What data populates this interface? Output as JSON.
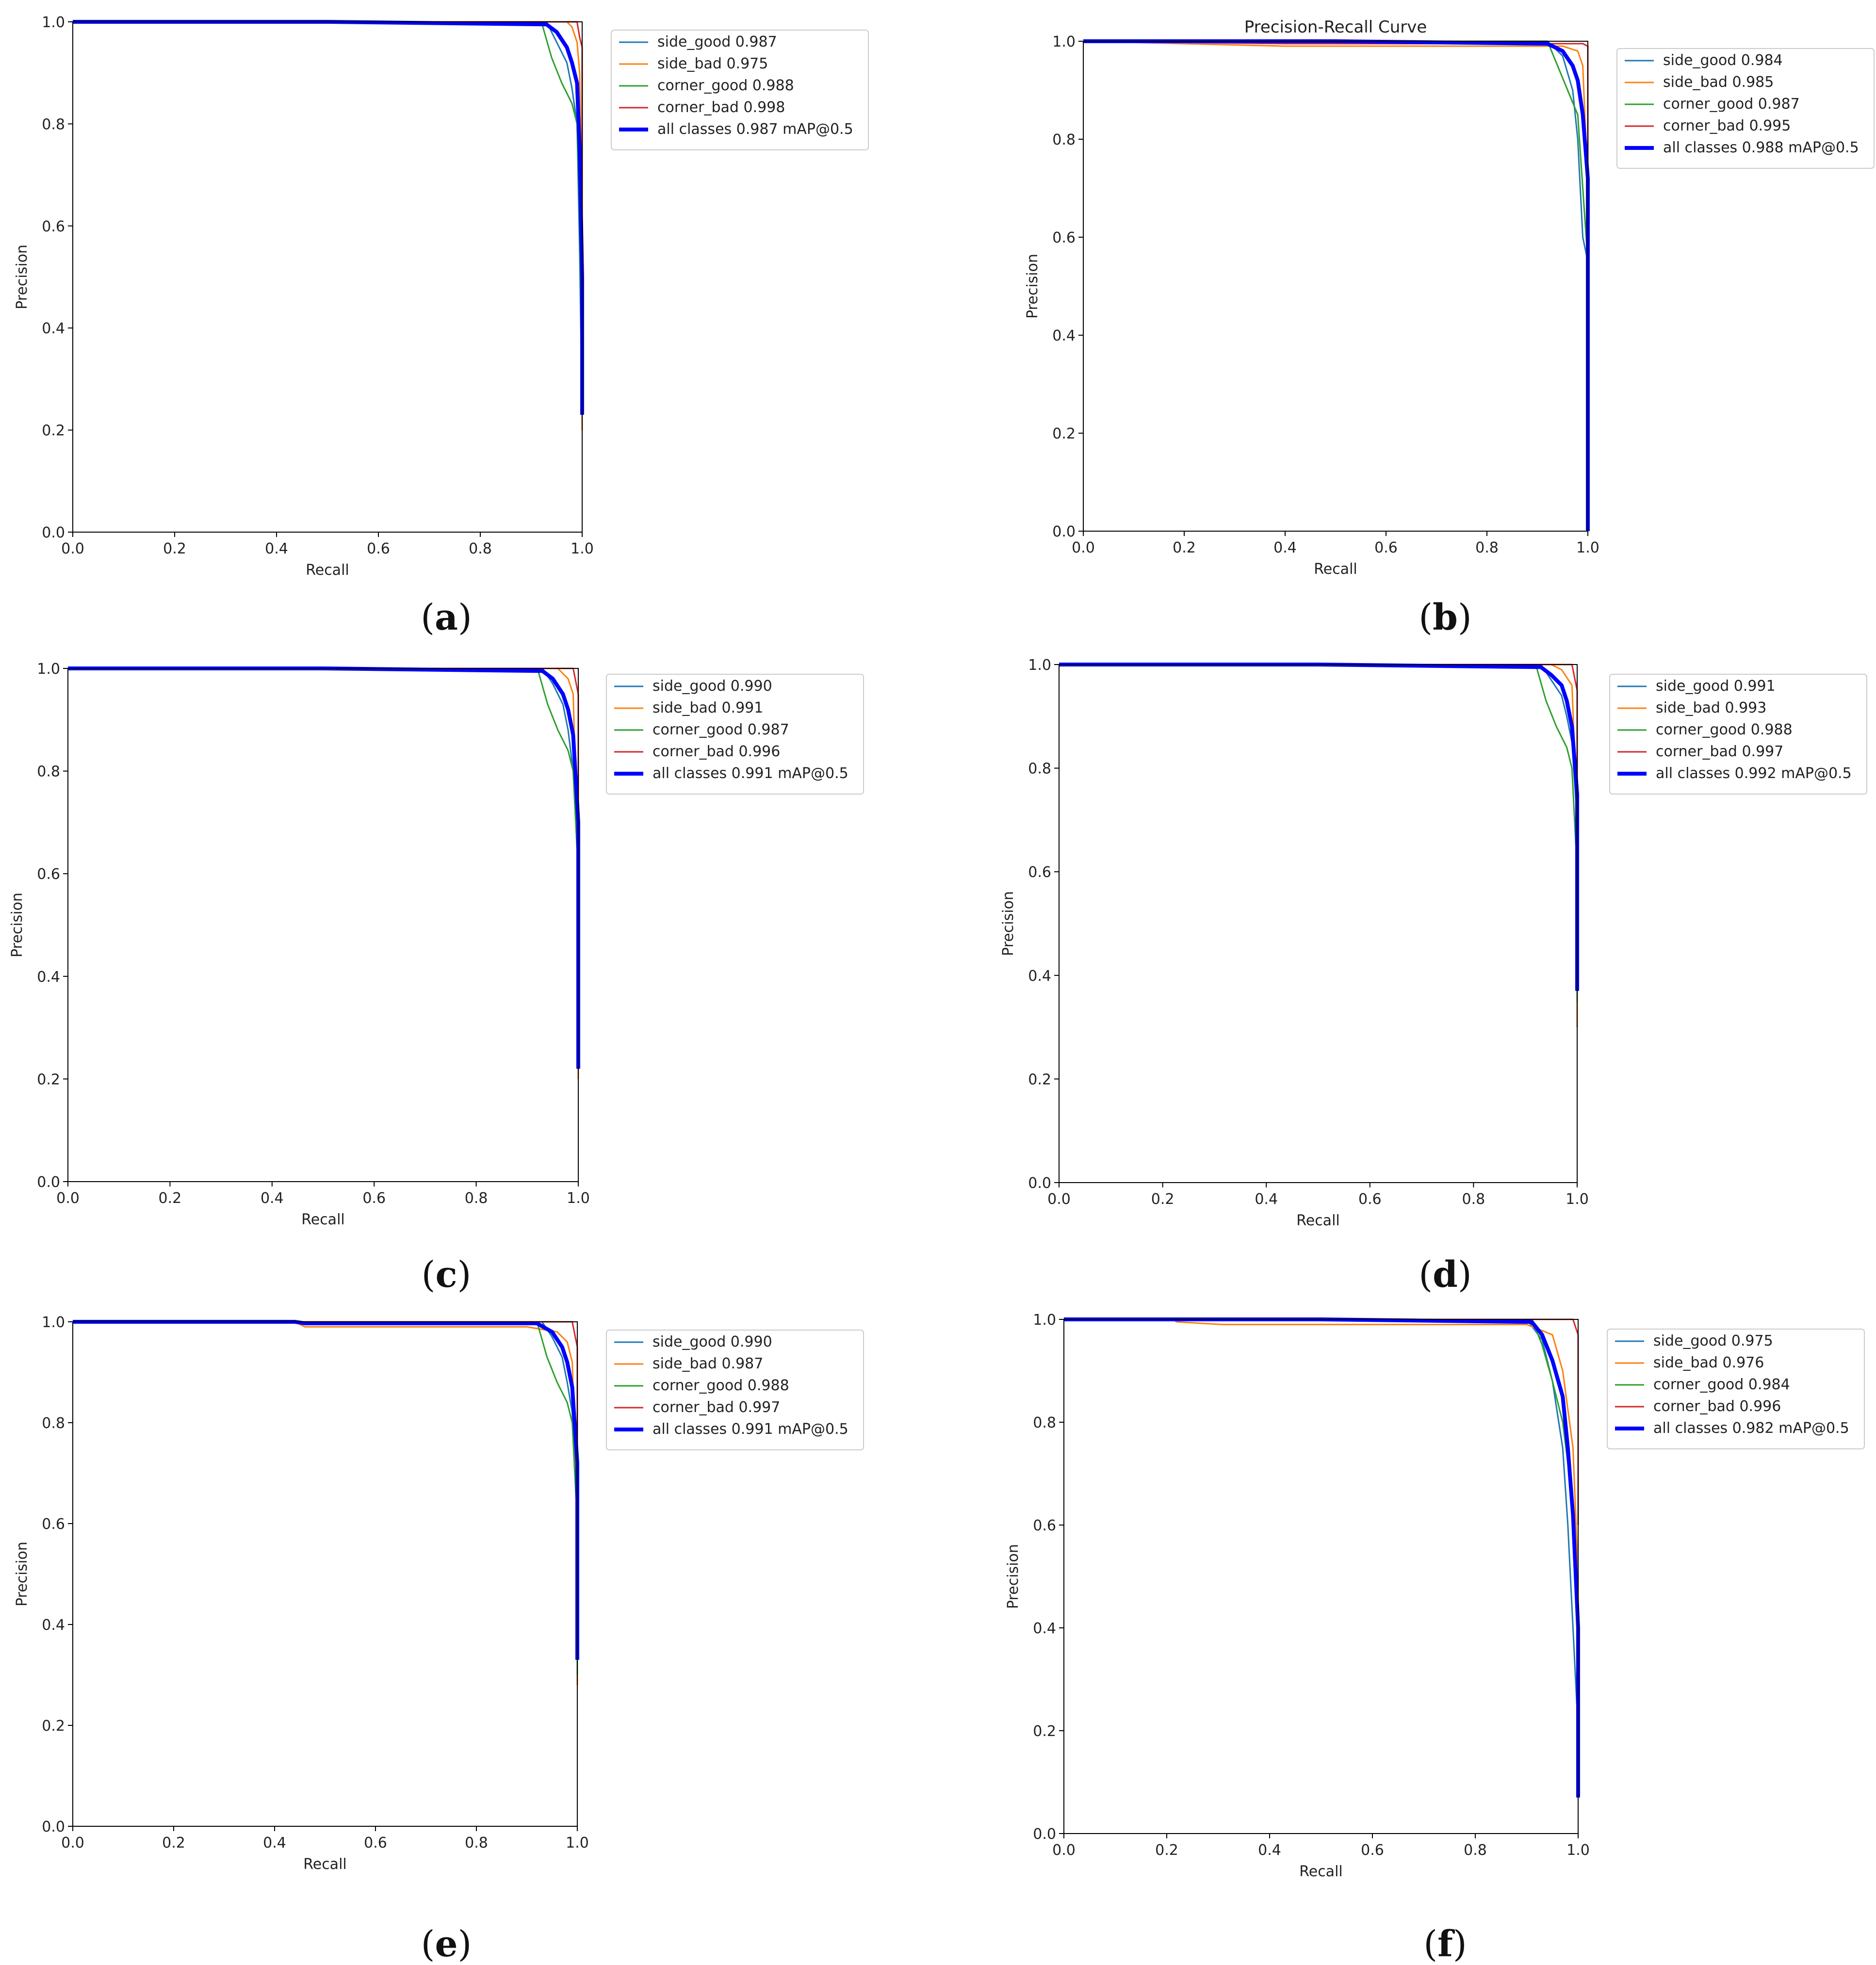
{
  "colors": {
    "side_good": "#1f77b4",
    "side_bad": "#ff7f0e",
    "corner_good": "#2ca02c",
    "corner_bad": "#d62728",
    "all_classes": "#0000ff",
    "axes": "#000000",
    "legend_border": "#cccccc"
  },
  "chart_data": [
    {
      "type": "line",
      "panel": "a",
      "caption": "a",
      "title": "",
      "xlabel": "Recall",
      "ylabel": "Precision",
      "xlim": [
        0,
        1
      ],
      "ylim": [
        0,
        1
      ],
      "xticks": [
        "0.0",
        "0.2",
        "0.4",
        "0.6",
        "0.8",
        "1.0"
      ],
      "yticks": [
        "0.0",
        "0.2",
        "0.4",
        "0.6",
        "0.8",
        "1.0"
      ],
      "grid": false,
      "legend_position": "outside-right-top",
      "series": [
        {
          "name": "side_good 0.987",
          "key": "side_good",
          "x": [
            0,
            0.5,
            0.93,
            0.95,
            0.97,
            0.98,
            0.99,
            0.995,
            1.0
          ],
          "y": [
            1.0,
            1.0,
            1.0,
            0.96,
            0.92,
            0.87,
            0.8,
            0.55,
            0.22
          ]
        },
        {
          "name": "side_bad 0.975",
          "key": "side_bad",
          "x": [
            0,
            0.5,
            0.97,
            0.98,
            0.99,
            0.995,
            1.0,
            1.0
          ],
          "y": [
            1.0,
            1.0,
            1.0,
            0.99,
            0.96,
            0.9,
            0.6,
            0.2
          ]
        },
        {
          "name": "corner_good 0.988",
          "key": "corner_good",
          "x": [
            0,
            0.5,
            0.92,
            0.94,
            0.96,
            0.98,
            0.99,
            0.995,
            1.0
          ],
          "y": [
            1.0,
            1.0,
            1.0,
            0.93,
            0.88,
            0.84,
            0.8,
            0.6,
            0.3
          ]
        },
        {
          "name": "corner_bad 0.998",
          "key": "corner_bad",
          "x": [
            0,
            0.5,
            0.99,
            0.995,
            1.0,
            1.0
          ],
          "y": [
            1.0,
            1.0,
            1.0,
            0.97,
            0.95,
            0.55
          ]
        },
        {
          "name": "all classes 0.987 mAP@0.5",
          "key": "all_classes",
          "x": [
            0,
            0.5,
            0.93,
            0.95,
            0.97,
            0.98,
            0.99,
            0.995,
            1.0,
            1.0
          ],
          "y": [
            1.0,
            1.0,
            0.995,
            0.98,
            0.95,
            0.92,
            0.88,
            0.75,
            0.5,
            0.23
          ]
        }
      ]
    },
    {
      "type": "line",
      "panel": "b",
      "caption": "b",
      "title": "Precision-Recall Curve",
      "xlabel": "Recall",
      "ylabel": "Precision",
      "xlim": [
        0,
        1
      ],
      "ylim": [
        0,
        1
      ],
      "xticks": [
        "0.0",
        "0.2",
        "0.4",
        "0.6",
        "0.8",
        "1.0"
      ],
      "yticks": [
        "0.0",
        "0.2",
        "0.4",
        "0.6",
        "0.8",
        "1.0"
      ],
      "grid": false,
      "legend_position": "outside-right-top",
      "series": [
        {
          "name": "side_good 0.984",
          "key": "side_good",
          "x": [
            0,
            0.5,
            0.92,
            0.95,
            0.97,
            0.98,
            0.99,
            1.0,
            1.0
          ],
          "y": [
            1.0,
            1.0,
            1.0,
            0.97,
            0.9,
            0.8,
            0.6,
            0.55,
            0.0
          ]
        },
        {
          "name": "side_bad 0.985",
          "key": "side_bad",
          "x": [
            0,
            0.4,
            0.5,
            0.8,
            0.95,
            0.98,
            0.99,
            1.0,
            1.0
          ],
          "y": [
            1.0,
            0.99,
            0.99,
            0.99,
            0.99,
            0.98,
            0.95,
            0.7,
            0.0
          ]
        },
        {
          "name": "corner_good 0.987",
          "key": "corner_good",
          "x": [
            0,
            0.5,
            0.92,
            0.94,
            0.96,
            0.98,
            0.99,
            1.0,
            1.0
          ],
          "y": [
            1.0,
            1.0,
            1.0,
            0.95,
            0.9,
            0.85,
            0.7,
            0.55,
            0.0
          ]
        },
        {
          "name": "corner_bad 0.995",
          "key": "corner_bad",
          "x": [
            0,
            0.4,
            0.5,
            0.99,
            1.0,
            1.0,
            1.0
          ],
          "y": [
            1.0,
            0.995,
            0.995,
            0.995,
            0.99,
            0.7,
            0.0
          ]
        },
        {
          "name": "all classes 0.988 mAP@0.5",
          "key": "all_classes",
          "x": [
            0,
            0.5,
            0.92,
            0.95,
            0.97,
            0.98,
            0.99,
            1.0,
            1.0
          ],
          "y": [
            1.0,
            1.0,
            0.995,
            0.98,
            0.95,
            0.92,
            0.85,
            0.72,
            0.0
          ]
        }
      ]
    },
    {
      "type": "line",
      "panel": "c",
      "caption": "c",
      "title": "",
      "xlabel": "Recall",
      "ylabel": "Precision",
      "xlim": [
        0,
        1
      ],
      "ylim": [
        0,
        1
      ],
      "xticks": [
        "0.0",
        "0.2",
        "0.4",
        "0.6",
        "0.8",
        "1.0"
      ],
      "yticks": [
        "0.0",
        "0.2",
        "0.4",
        "0.6",
        "0.8",
        "1.0"
      ],
      "grid": false,
      "legend_position": "outside-right-top",
      "series": [
        {
          "name": "side_good 0.990",
          "key": "side_good",
          "x": [
            0,
            0.5,
            0.93,
            0.95,
            0.97,
            0.98,
            0.99,
            1.0,
            1.0
          ],
          "y": [
            1.0,
            1.0,
            1.0,
            0.97,
            0.93,
            0.88,
            0.8,
            0.6,
            0.22
          ]
        },
        {
          "name": "side_bad 0.991",
          "key": "side_bad",
          "x": [
            0,
            0.5,
            0.96,
            0.98,
            0.99,
            1.0,
            1.0
          ],
          "y": [
            1.0,
            1.0,
            1.0,
            0.98,
            0.95,
            0.6,
            0.2
          ]
        },
        {
          "name": "corner_good 0.987",
          "key": "corner_good",
          "x": [
            0,
            0.5,
            0.92,
            0.94,
            0.96,
            0.98,
            0.99,
            1.0,
            1.0
          ],
          "y": [
            1.0,
            1.0,
            1.0,
            0.93,
            0.88,
            0.84,
            0.8,
            0.6,
            0.3
          ]
        },
        {
          "name": "corner_bad 0.996",
          "key": "corner_bad",
          "x": [
            0,
            0.5,
            0.99,
            1.0,
            1.0
          ],
          "y": [
            1.0,
            1.0,
            1.0,
            0.95,
            0.55
          ]
        },
        {
          "name": "all classes 0.991 mAP@0.5",
          "key": "all_classes",
          "x": [
            0,
            0.5,
            0.93,
            0.95,
            0.97,
            0.98,
            0.99,
            1.0,
            1.0
          ],
          "y": [
            1.0,
            1.0,
            0.995,
            0.98,
            0.95,
            0.92,
            0.87,
            0.7,
            0.22
          ]
        }
      ]
    },
    {
      "type": "line",
      "panel": "d",
      "caption": "d",
      "title": "",
      "xlabel": "Recall",
      "ylabel": "Precision",
      "xlim": [
        0,
        1
      ],
      "ylim": [
        0,
        1
      ],
      "xticks": [
        "0.0",
        "0.2",
        "0.4",
        "0.6",
        "0.8",
        "1.0"
      ],
      "yticks": [
        "0.0",
        "0.2",
        "0.4",
        "0.6",
        "0.8",
        "1.0"
      ],
      "grid": false,
      "legend_position": "outside-right-top",
      "series": [
        {
          "name": "side_good 0.991",
          "key": "side_good",
          "x": [
            0,
            0.5,
            0.93,
            0.95,
            0.97,
            0.98,
            0.99,
            1.0,
            1.0
          ],
          "y": [
            1.0,
            1.0,
            1.0,
            0.97,
            0.94,
            0.9,
            0.85,
            0.7,
            0.35
          ]
        },
        {
          "name": "side_bad 0.993",
          "key": "side_bad",
          "x": [
            0,
            0.5,
            0.95,
            0.97,
            0.99,
            1.0,
            1.0
          ],
          "y": [
            1.0,
            1.0,
            1.0,
            0.99,
            0.96,
            0.7,
            0.3
          ]
        },
        {
          "name": "corner_good 0.988",
          "key": "corner_good",
          "x": [
            0,
            0.5,
            0.92,
            0.94,
            0.96,
            0.98,
            0.99,
            1.0,
            1.0
          ],
          "y": [
            1.0,
            1.0,
            1.0,
            0.93,
            0.88,
            0.84,
            0.8,
            0.6,
            0.35
          ]
        },
        {
          "name": "corner_bad 0.997",
          "key": "corner_bad",
          "x": [
            0,
            0.5,
            0.99,
            1.0,
            1.0
          ],
          "y": [
            1.0,
            1.0,
            1.0,
            0.95,
            0.7
          ]
        },
        {
          "name": "all classes 0.992 mAP@0.5",
          "key": "all_classes",
          "x": [
            0,
            0.5,
            0.93,
            0.95,
            0.97,
            0.98,
            0.99,
            1.0,
            1.0
          ],
          "y": [
            1.0,
            1.0,
            0.995,
            0.98,
            0.96,
            0.93,
            0.88,
            0.75,
            0.37
          ]
        }
      ]
    },
    {
      "type": "line",
      "panel": "e",
      "caption": "e",
      "title": "",
      "xlabel": "Recall",
      "ylabel": "Precision",
      "xlim": [
        0,
        1
      ],
      "ylim": [
        0,
        1
      ],
      "xticks": [
        "0.0",
        "0.2",
        "0.4",
        "0.6",
        "0.8",
        "1.0"
      ],
      "yticks": [
        "0.0",
        "0.2",
        "0.4",
        "0.6",
        "0.8",
        "1.0"
      ],
      "grid": false,
      "legend_position": "outside-right-top",
      "series": [
        {
          "name": "side_good 0.990",
          "key": "side_good",
          "x": [
            0,
            0.5,
            0.93,
            0.95,
            0.97,
            0.98,
            0.99,
            1.0,
            1.0
          ],
          "y": [
            1.0,
            1.0,
            1.0,
            0.97,
            0.93,
            0.88,
            0.82,
            0.6,
            0.3
          ]
        },
        {
          "name": "side_bad 0.987",
          "key": "side_bad",
          "x": [
            0,
            0.44,
            0.46,
            0.9,
            0.96,
            0.98,
            0.99,
            1.0,
            1.0
          ],
          "y": [
            1.0,
            1.0,
            0.99,
            0.99,
            0.98,
            0.96,
            0.92,
            0.6,
            0.28
          ]
        },
        {
          "name": "corner_good 0.988",
          "key": "corner_good",
          "x": [
            0,
            0.5,
            0.92,
            0.94,
            0.96,
            0.98,
            0.99,
            1.0,
            1.0
          ],
          "y": [
            1.0,
            1.0,
            1.0,
            0.93,
            0.88,
            0.84,
            0.8,
            0.6,
            0.3
          ]
        },
        {
          "name": "corner_bad 0.997",
          "key": "corner_bad",
          "x": [
            0,
            0.5,
            0.99,
            1.0,
            1.0
          ],
          "y": [
            1.0,
            1.0,
            1.0,
            0.95,
            0.7
          ]
        },
        {
          "name": "all classes 0.991 mAP@0.5",
          "key": "all_classes",
          "x": [
            0,
            0.44,
            0.46,
            0.92,
            0.95,
            0.97,
            0.98,
            0.99,
            1.0,
            1.0
          ],
          "y": [
            1.0,
            1.0,
            0.997,
            0.997,
            0.98,
            0.95,
            0.92,
            0.87,
            0.72,
            0.33
          ]
        }
      ]
    },
    {
      "type": "line",
      "panel": "f",
      "caption": "f",
      "title": "",
      "xlabel": "Recall",
      "ylabel": "Precision",
      "xlim": [
        0,
        1
      ],
      "ylim": [
        0,
        1
      ],
      "xticks": [
        "0.0",
        "0.2",
        "0.4",
        "0.6",
        "0.8",
        "1.0"
      ],
      "yticks": [
        "0.0",
        "0.2",
        "0.4",
        "0.6",
        "0.8",
        "1.0"
      ],
      "grid": false,
      "legend_position": "outside-right-top",
      "series": [
        {
          "name": "side_good 0.975",
          "key": "side_good",
          "x": [
            0,
            0.5,
            0.9,
            0.93,
            0.95,
            0.97,
            0.98,
            0.99,
            0.995,
            1.0,
            1.0
          ],
          "y": [
            1.0,
            1.0,
            1.0,
            0.96,
            0.88,
            0.75,
            0.6,
            0.4,
            0.3,
            0.2,
            0.07
          ]
        },
        {
          "name": "side_bad 0.976",
          "key": "side_bad",
          "x": [
            0,
            0.21,
            0.22,
            0.31,
            0.5,
            0.9,
            0.95,
            0.97,
            0.99,
            1.0,
            1.0
          ],
          "y": [
            1.0,
            1.0,
            0.995,
            0.99,
            0.99,
            0.99,
            0.97,
            0.9,
            0.75,
            0.5,
            0.07
          ]
        },
        {
          "name": "corner_good 0.984",
          "key": "corner_good",
          "x": [
            0,
            0.5,
            0.91,
            0.93,
            0.95,
            0.97,
            0.98,
            0.99,
            1.0,
            1.0
          ],
          "y": [
            1.0,
            1.0,
            1.0,
            0.95,
            0.88,
            0.8,
            0.72,
            0.6,
            0.45,
            0.1
          ]
        },
        {
          "name": "corner_bad 0.996",
          "key": "corner_bad",
          "x": [
            0,
            0.5,
            0.99,
            1.0,
            1.0
          ],
          "y": [
            1.0,
            1.0,
            1.0,
            0.97,
            0.6
          ]
        },
        {
          "name": "all classes 0.982 mAP@0.5",
          "key": "all_classes",
          "x": [
            0,
            0.5,
            0.91,
            0.93,
            0.95,
            0.97,
            0.98,
            0.99,
            1.0,
            1.0
          ],
          "y": [
            1.0,
            1.0,
            0.995,
            0.97,
            0.92,
            0.85,
            0.75,
            0.62,
            0.4,
            0.07
          ]
        }
      ]
    }
  ]
}
